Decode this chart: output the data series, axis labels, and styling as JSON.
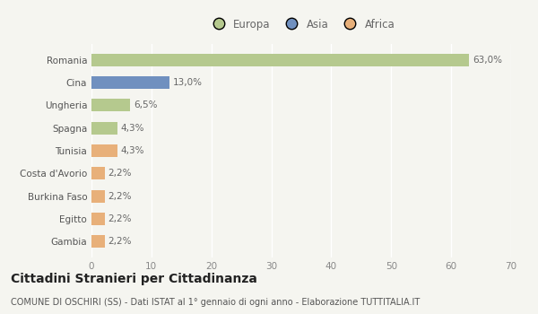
{
  "categories": [
    "Romania",
    "Cina",
    "Ungheria",
    "Spagna",
    "Tunisia",
    "Costa d'Avorio",
    "Burkina Faso",
    "Egitto",
    "Gambia"
  ],
  "values": [
    63.0,
    13.0,
    6.5,
    4.3,
    4.3,
    2.2,
    2.2,
    2.2,
    2.2
  ],
  "labels": [
    "63,0%",
    "13,0%",
    "6,5%",
    "4,3%",
    "4,3%",
    "2,2%",
    "2,2%",
    "2,2%",
    "2,2%"
  ],
  "colors": [
    "#b5c98e",
    "#7090bf",
    "#b5c98e",
    "#b5c98e",
    "#e8b07a",
    "#e8b07a",
    "#e8b07a",
    "#e8b07a",
    "#e8b07a"
  ],
  "legend_labels": [
    "Europa",
    "Asia",
    "Africa"
  ],
  "legend_colors": [
    "#b5c98e",
    "#7090bf",
    "#e8b07a"
  ],
  "xlim": [
    0,
    70
  ],
  "xticks": [
    0,
    10,
    20,
    30,
    40,
    50,
    60,
    70
  ],
  "title": "Cittadini Stranieri per Cittadinanza",
  "subtitle": "COMUNE DI OSCHIRI (SS) - Dati ISTAT al 1° gennaio di ogni anno - Elaborazione TUTTITALIA.IT",
  "bg_color": "#f5f5f0",
  "bar_height": 0.55,
  "grid_color": "#ffffff",
  "label_fontsize": 7.5,
  "tick_fontsize": 7.5,
  "title_fontsize": 10,
  "subtitle_fontsize": 7.0
}
